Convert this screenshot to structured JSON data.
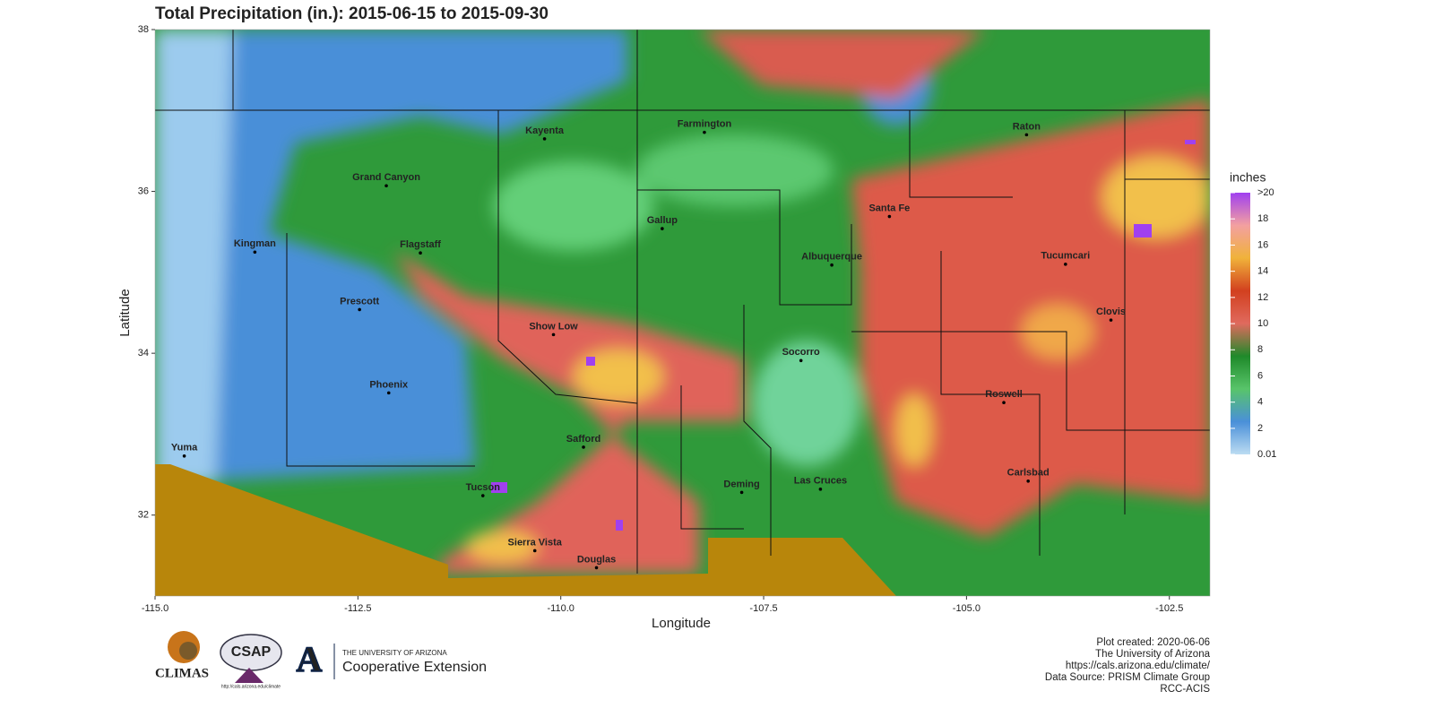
{
  "chart_data": {
    "type": "map",
    "title": "Total Precipitation (in.): 2015-06-15 to 2015-09-30",
    "x_label": "Longitude",
    "y_label": "Latitude",
    "xlim": [
      -115,
      -102
    ],
    "ylim": [
      31,
      38
    ],
    "xticks": [
      {
        "value": -115,
        "label": "-115.0"
      },
      {
        "value": -112.5,
        "label": "-112.5"
      },
      {
        "value": -110,
        "label": "-110.0"
      },
      {
        "value": -107.5,
        "label": "-107.5"
      },
      {
        "value": -105,
        "label": "-105.0"
      },
      {
        "value": -102.5,
        "label": "-102.5"
      }
    ],
    "yticks": [
      32,
      34,
      36,
      38
    ],
    "legend": {
      "title": "inches",
      "lim": [
        0.01,
        20
      ],
      "ticks": [
        0.01,
        2,
        4,
        6,
        8,
        10,
        12,
        14,
        16,
        18,
        {
          "value": 20,
          "label": ">20"
        }
      ],
      "colors": [
        "#bcdcf2",
        "#4a90d9",
        "#58c46a",
        "#1f8a2a",
        "#e06a5e",
        "#d2401f",
        "#f0b23a",
        "#f3a0a0",
        "#a040f0"
      ]
    },
    "cities": [
      {
        "name": "Yuma",
        "lon": -114.64,
        "lat": 32.73
      },
      {
        "name": "Kingman",
        "lon": -113.77,
        "lat": 35.25
      },
      {
        "name": "Grand Canyon",
        "lon": -112.15,
        "lat": 36.07
      },
      {
        "name": "Flagstaff",
        "lon": -111.73,
        "lat": 35.24
      },
      {
        "name": "Prescott",
        "lon": -112.48,
        "lat": 34.54
      },
      {
        "name": "Phoenix",
        "lon": -112.12,
        "lat": 33.51
      },
      {
        "name": "Kayenta",
        "lon": -110.2,
        "lat": 36.65
      },
      {
        "name": "Show Low",
        "lon": -110.09,
        "lat": 34.23
      },
      {
        "name": "Tucson",
        "lon": -110.96,
        "lat": 32.24
      },
      {
        "name": "Safford",
        "lon": -109.72,
        "lat": 32.84
      },
      {
        "name": "Sierra Vista",
        "lon": -110.32,
        "lat": 31.56
      },
      {
        "name": "Douglas",
        "lon": -109.56,
        "lat": 31.35
      },
      {
        "name": "Farmington",
        "lon": -108.23,
        "lat": 36.73
      },
      {
        "name": "Gallup",
        "lon": -108.75,
        "lat": 35.54
      },
      {
        "name": "Albuquerque",
        "lon": -106.66,
        "lat": 35.09
      },
      {
        "name": "Santa Fe",
        "lon": -105.95,
        "lat": 35.69
      },
      {
        "name": "Socorro",
        "lon": -107.04,
        "lat": 33.91
      },
      {
        "name": "Deming",
        "lon": -107.77,
        "lat": 32.28
      },
      {
        "name": "Las Cruces",
        "lon": -106.8,
        "lat": 32.32
      },
      {
        "name": "Raton",
        "lon": -104.26,
        "lat": 36.7
      },
      {
        "name": "Tucumcari",
        "lon": -103.78,
        "lat": 35.1
      },
      {
        "name": "Clovis",
        "lon": -103.22,
        "lat": 34.41
      },
      {
        "name": "Roswell",
        "lon": -104.54,
        "lat": 33.39
      },
      {
        "name": "Carlsbad",
        "lon": -104.24,
        "lat": 32.42
      }
    ]
  },
  "footer": {
    "logos": [
      "CLIMAS",
      "CSAP",
      "http://cals.arizona.edu/climate",
      "THE UNIVERSITY OF ARIZONA",
      "Cooperative Extension"
    ],
    "credits": [
      "Plot created: 2020-06-06",
      "The University of Arizona",
      "https://cals.arizona.edu/climate/",
      "Data Source: PRISM Climate Group",
      "RCC-ACIS"
    ]
  }
}
